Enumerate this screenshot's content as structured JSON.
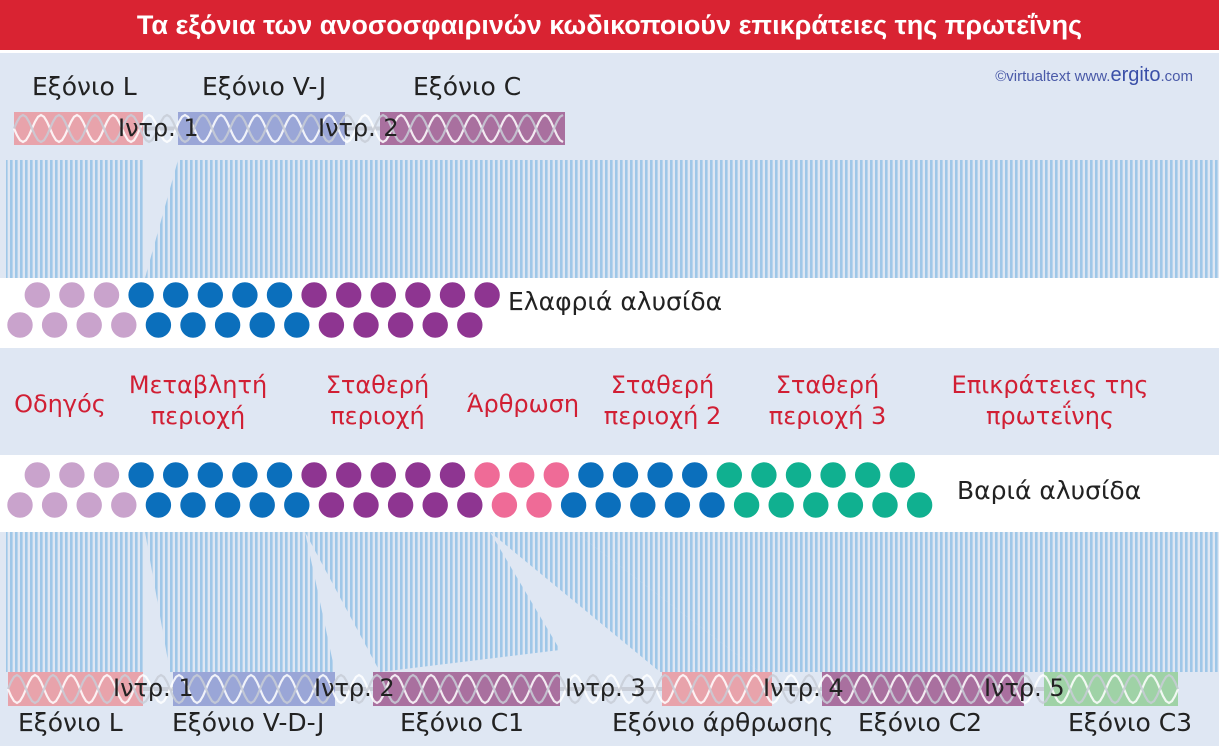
{
  "title": "Τα εξόνια των ανοσοσφαιρινών κωδικοποιούν επικράτειες της πρωτεΐνης",
  "credit": {
    "prefix": "©virtualtext  www.",
    "brand": "ergito",
    "suffix": ".com"
  },
  "colors": {
    "leader": "#c9a3cc",
    "variable": "#0b6fbc",
    "constant": "#8e3591",
    "hinge": "#ef6b97",
    "constant3": "#10b090",
    "domain_text": "#d11f34",
    "stripes": "#9fc7e8",
    "title_bg": "#d92332"
  },
  "light_gene": {
    "exons": [
      "Εξόνιο L",
      "Εξόνιο V-J",
      "Εξόνιο C"
    ],
    "introns": [
      "Ιντρ. 1",
      "Ιντρ. 2"
    ]
  },
  "light_chain_label": "Ελαφριά αλυσίδα",
  "heavy_chain_label": "Βαριά αλυσίδα",
  "domains": [
    "Οδηγός",
    "Μεταβλητή\nπεριοχή",
    "Σταθερή\nπεριοχή",
    "Άρθρωση",
    "Σταθερή\nπεριοχή 2",
    "Σταθερή\nπεριοχή 3",
    "Επικράτειες της\nπρωτεΐνης"
  ],
  "heavy_gene": {
    "exons": [
      "Εξόνιο L",
      "Εξόνιο V-D-J",
      "Εξόνιο C1",
      "Εξόνιο άρθρωσης",
      "Εξόνιο C2",
      "Εξόνιο C3"
    ],
    "introns": [
      "Ιντρ. 1",
      "Ιντρ. 2",
      "Ιντρ. 3",
      "Ιντρ. 4",
      "Ιντρ. 5"
    ]
  }
}
